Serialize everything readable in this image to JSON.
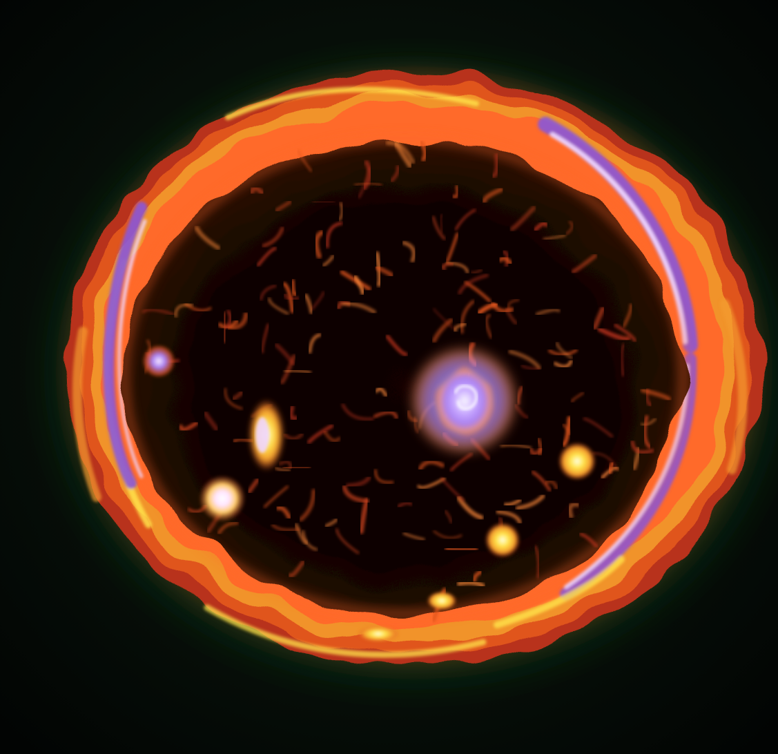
{
  "colors": {
    "background": "#050806",
    "background_glow": "#0c1a10",
    "outer_green_haze": "#1f6b2a",
    "rim_dark_orange": "#b8321a",
    "rim_orange": "#e0541f",
    "rim_amber": "#f39a2c",
    "rim_yellow": "#ffe34a",
    "rim_violet": "#8a56d8",
    "rim_lilac": "#f0d6ff",
    "interior_dark": "#060302",
    "interior_filament": "#c2401c",
    "filament_bright": "#ff8a3a",
    "central_star_core": "#a77ef0",
    "central_star_edge": "#ffffff"
  },
  "objects": [
    {
      "name": "nebula-shell",
      "kind": "elliptical ring of glowing gas"
    },
    {
      "name": "central-star",
      "kind": "violet-white bright knot"
    },
    {
      "name": "left-bright-knot",
      "kind": "yellow-white elongated knot"
    },
    {
      "name": "lower-left-star",
      "kind": "white point with halo"
    },
    {
      "name": "small-left-knot",
      "kind": "violet point"
    },
    {
      "name": "right-knot",
      "kind": "amber point"
    },
    {
      "name": "lower-right-knot",
      "kind": "pale yellow point"
    }
  ]
}
